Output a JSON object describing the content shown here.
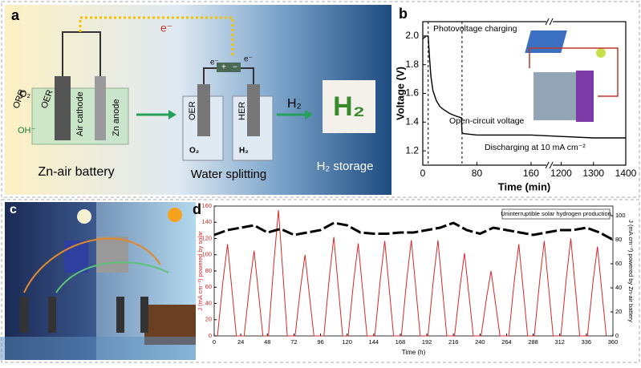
{
  "panels": {
    "a": {
      "label": "a",
      "electron": "e⁻",
      "o2": "O₂",
      "orr": "ORR",
      "oer": "OER",
      "oh": "OH⁻",
      "air_cathode": "Air cathode",
      "zn_anode": "Zn anode",
      "title": "Zn-air battery",
      "e_left": "e⁻",
      "e_right": "e⁻",
      "plus": "+",
      "minus": "−",
      "oer2": "OER",
      "her": "HER",
      "o2_2": "O₂",
      "h2_small": "H₂",
      "h2_arrow": "H₂",
      "h2_block": "H₂",
      "water_splitting": "Water splitting",
      "h2_storage": "H₂ storage"
    },
    "c": {
      "label": "c"
    }
  },
  "chart_data": [
    {
      "type": "line",
      "panel_label": "b",
      "xlabel": "Time (min)",
      "ylabel": "Voltage (V)",
      "xlim": [
        0,
        1400
      ],
      "x_break": [
        180,
        1180
      ],
      "xticks": [
        0,
        80,
        160,
        1200,
        1300,
        1400
      ],
      "ylim": [
        1.1,
        2.1
      ],
      "yticks": [
        1.2,
        1.4,
        1.6,
        1.8,
        {
          "value": 2,
          "label": "2.0"
        }
      ],
      "stage_lines": [
        8,
        58
      ],
      "annotations": [
        "Photovoltage charging",
        "Open-circuit voltage",
        "Discharging at 10 mA cm⁻²"
      ],
      "series": [
        {
          "color": "#000000",
          "x": [
            0,
            5,
            8,
            10,
            12,
            15,
            20,
            25,
            30,
            40,
            50,
            57,
            58,
            60,
            80,
            120,
            160,
            1200,
            1300,
            1400
          ],
          "values": [
            1.98,
            2.0,
            2.0,
            1.85,
            1.72,
            1.62,
            1.55,
            1.51,
            1.49,
            1.46,
            1.44,
            1.43,
            1.33,
            1.32,
            1.31,
            1.31,
            1.31,
            1.3,
            1.29,
            1.29
          ]
        }
      ]
    },
    {
      "type": "dual-line",
      "panel_label": "d",
      "xlabel": "Time (h)",
      "ylabel": "J (mA cm⁻²) powered by solar",
      "y2label": "J (mA cm⁻²) powered by Zn-air battery",
      "annotation": "Uninterruptible solar hydrogen production",
      "xlim": [
        0,
        360
      ],
      "xticks": [
        0,
        24,
        48,
        72,
        96,
        120,
        144,
        168,
        192,
        216,
        240,
        264,
        288,
        312,
        336,
        360
      ],
      "ylim": [
        0,
        160
      ],
      "yticks": [
        0,
        20,
        40,
        60,
        80,
        100,
        120,
        140,
        160
      ],
      "y2lim": [
        0,
        108
      ],
      "y2ticks": [
        0,
        20,
        40,
        60,
        80,
        100
      ],
      "series": [
        {
          "color": "#d62728",
          "x": [
            3,
            8,
            12,
            16,
            20,
            27,
            32,
            36,
            40,
            44,
            49,
            54,
            58,
            62,
            66,
            73,
            78,
            82,
            86,
            90,
            99,
            104,
            108,
            112,
            116,
            121,
            126,
            130,
            134,
            138,
            145,
            150,
            154,
            158,
            162,
            169,
            174,
            178,
            182,
            186,
            193,
            198,
            202,
            206,
            210,
            217,
            222,
            226,
            230,
            234,
            241,
            246,
            250,
            254,
            258,
            266,
            271,
            275,
            279,
            283,
            289,
            294,
            298,
            302,
            306,
            313,
            318,
            322,
            326,
            330,
            337,
            342,
            346,
            350,
            354
          ],
          "values": [
            0,
            68,
            113,
            57,
            0,
            0,
            63,
            105,
            53,
            0,
            0,
            93,
            155,
            78,
            0,
            0,
            60,
            100,
            50,
            0,
            0,
            73,
            122,
            61,
            0,
            0,
            68,
            114,
            57,
            0,
            0,
            70,
            117,
            59,
            0,
            0,
            71,
            118,
            59,
            0,
            0,
            71,
            118,
            59,
            0,
            0,
            61,
            102,
            51,
            0,
            0,
            48,
            80,
            40,
            0,
            0,
            68,
            113,
            57,
            0,
            0,
            70,
            117,
            59,
            0,
            0,
            72,
            120,
            60,
            0,
            0,
            66,
            110,
            55,
            0
          ]
        },
        {
          "axis": "y2",
          "color": "#000000",
          "x": [
            0,
            12,
            24,
            36,
            48,
            60,
            72,
            84,
            96,
            108,
            120,
            132,
            144,
            156,
            168,
            180,
            192,
            204,
            216,
            228,
            240,
            252,
            264,
            276,
            288,
            300,
            312,
            324,
            336,
            348,
            360
          ],
          "values": [
            84,
            88,
            90,
            92,
            86,
            89,
            84,
            86,
            88,
            94,
            92,
            86,
            85,
            85,
            86,
            86,
            88,
            90,
            94,
            88,
            85,
            90,
            88,
            86,
            84,
            86,
            88,
            88,
            90,
            86,
            80
          ]
        }
      ]
    }
  ]
}
